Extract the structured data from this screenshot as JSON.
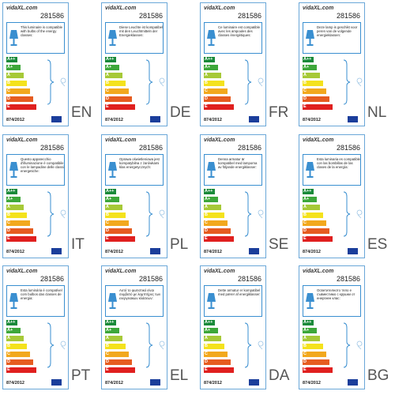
{
  "labels": [
    {
      "logo": "vidaXL.com",
      "code": "281586",
      "text": "This luminaire is compatible with bulbs of the energy classes:",
      "classes": [
        "A++",
        "A+",
        "A",
        "B",
        "C",
        "D",
        "E"
      ],
      "regulation": "874/2012",
      "language": "EN"
    },
    {
      "logo": "vidaXL.com",
      "code": "281586",
      "text": "Diese Leuchte ist kompatibel mit den Leuchtmitteln der Energieklassen:",
      "classes": [
        "A++",
        "A+",
        "A",
        "B",
        "C",
        "D",
        "E"
      ],
      "regulation": "874/2012",
      "language": "DE"
    },
    {
      "logo": "vidaXL.com",
      "code": "281586",
      "text": "Ce luminaire est compatible avec les ampoules des classes énergétiques:",
      "classes": [
        "A++",
        "A+",
        "A",
        "B",
        "C",
        "D",
        "E"
      ],
      "regulation": "874/2012",
      "language": "FR"
    },
    {
      "logo": "vidaXL.com",
      "code": "281586",
      "text": "Deze lamp is geschikt voor peren van de volgende energieklassen:",
      "classes": [
        "A++",
        "A+",
        "A",
        "B",
        "C",
        "D",
        "E"
      ],
      "regulation": "874/2012",
      "language": "NL"
    },
    {
      "logo": "vidaXL.com",
      "code": "281586",
      "text": "Questo apparecchio d'illuminazione è compatibile con le lampadine delle classi energetiche:",
      "classes": [
        "A++",
        "A+",
        "A",
        "B",
        "C",
        "D",
        "E"
      ],
      "regulation": "874/2012",
      "language": "IT"
    },
    {
      "logo": "vidaXL.com",
      "code": "281586",
      "text": "Oprawa oświetleniowa jest kompatybilna z żarówkami klas energetycznych:",
      "classes": [
        "A++",
        "A+",
        "A",
        "B",
        "C",
        "D",
        "E"
      ],
      "regulation": "874/2012",
      "language": "PL"
    },
    {
      "logo": "vidaXL.com",
      "code": "281586",
      "text": "Denna armatur är kompatibel med lamporna av följande energiklasser:",
      "classes": [
        "A++",
        "A+",
        "A",
        "B",
        "C",
        "D",
        "E"
      ],
      "regulation": "874/2012",
      "language": "SE"
    },
    {
      "logo": "vidaXL.com",
      "code": "281586",
      "text": "Esta luminaria es compatible con las bombillas de las clases de la energía:",
      "classes": [
        "A++",
        "A+",
        "A",
        "B",
        "C",
        "D",
        "E"
      ],
      "regulation": "874/2012",
      "language": "ES"
    },
    {
      "logo": "vidaXL.com",
      "code": "281586",
      "text": "Esta luminária é compatível com bulbos das classes de energia:",
      "classes": [
        "A++",
        "A+",
        "A",
        "B",
        "C",
        "D",
        "E"
      ],
      "regulation": "874/2012",
      "language": "PT"
    },
    {
      "logo": "vidaXL.com",
      "code": "281586",
      "text": "Αυτό το φωτιστικό είναι συμβατό με λαμπτήρες των ενεργειακών κλάσεων:",
      "classes": [
        "A++",
        "A+",
        "A",
        "B",
        "C",
        "D",
        "E"
      ],
      "regulation": "874/2012",
      "language": "EL"
    },
    {
      "logo": "vidaXL.com",
      "code": "281586",
      "text": "Dette armatur er kompatibel med pærer af energiklasser:",
      "classes": [
        "A++",
        "A+",
        "A",
        "B",
        "C",
        "D",
        "E"
      ],
      "regulation": "874/2012",
      "language": "DA"
    },
    {
      "logo": "vidaXL.com",
      "code": "281586",
      "text": "Осветителното тяло е съвместимо с крушки от енергиен клас:",
      "classes": [
        "A++",
        "A+",
        "A",
        "B",
        "C",
        "D",
        "E"
      ],
      "regulation": "874/2012",
      "language": "BG"
    }
  ]
}
